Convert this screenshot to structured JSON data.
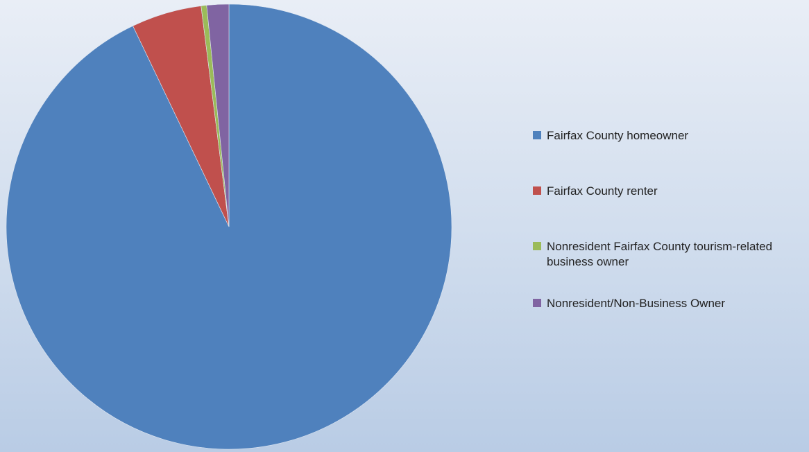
{
  "chart_data": {
    "type": "pie",
    "categories": [
      "Fairfax County homeowner",
      "Fairfax County renter",
      "Nonresident Fairfax County tourism-related business owner",
      "Nonresident/Non-Business Owner"
    ],
    "values": [
      92.9,
      5.1,
      0.4,
      1.6
    ],
    "colors": [
      "#4f81bd",
      "#c0504d",
      "#9bbb59",
      "#8064a2"
    ],
    "legend": "right"
  }
}
